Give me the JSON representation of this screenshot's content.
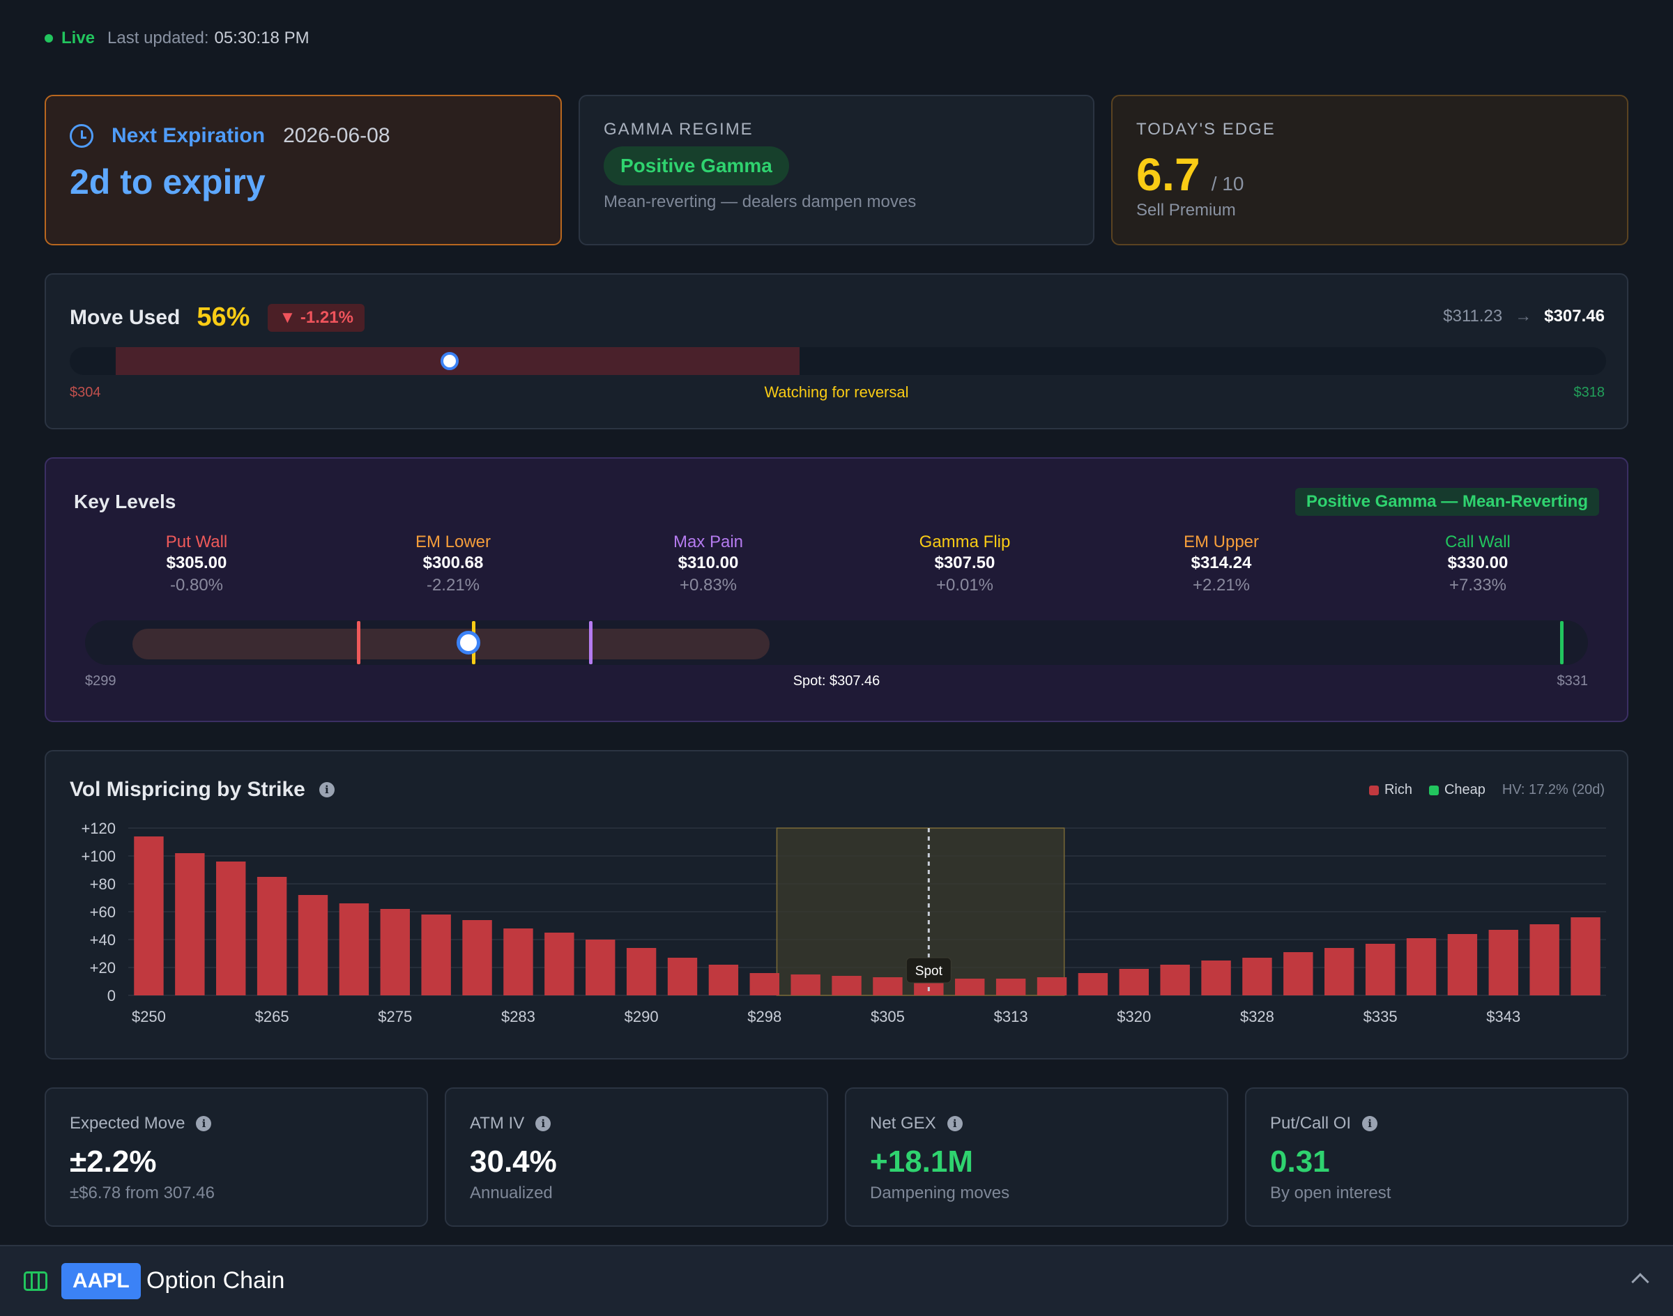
{
  "status": {
    "live": "Live",
    "updated_label": "Last updated:",
    "updated_time": "05:30:18 PM"
  },
  "expiration": {
    "label": "Next Expiration",
    "date": "2026-06-08",
    "countdown": "2d to expiry"
  },
  "gamma": {
    "title": "GAMMA REGIME",
    "regime": "Positive Gamma",
    "description": "Mean-reverting — dealers dampen moves"
  },
  "edge": {
    "title": "TODAY'S EDGE",
    "score": "6.7",
    "max": "/ 10",
    "action": "Sell Premium"
  },
  "move": {
    "label": "Move Used",
    "percent": "56%",
    "change": "▼ -1.21%",
    "from_price": "$311.23",
    "to_price": "$307.46",
    "range_low": "$304",
    "range_high": "$318",
    "note": "Watching for reversal",
    "range_low_value": 304,
    "range_high_value": 318,
    "spot_value": 307.46,
    "fill_start_value": 304.42,
    "fill_end_value": 310.65
  },
  "levels": {
    "title": "Key Levels",
    "tag": "Positive Gamma — Mean-Reverting",
    "items": [
      {
        "name": "Put Wall",
        "price": "$305.00",
        "pct": "-0.80%",
        "color": "#ef5a5a",
        "value": 305.0
      },
      {
        "name": "EM Lower",
        "price": "$300.68",
        "pct": "-2.21%",
        "color": "#f59e3b",
        "value": 300.68
      },
      {
        "name": "Max Pain",
        "price": "$310.00",
        "pct": "+0.83%",
        "color": "#b57bf0",
        "value": 310.0
      },
      {
        "name": "Gamma Flip",
        "price": "$307.50",
        "pct": "+0.01%",
        "color": "#facc15",
        "value": 307.5
      },
      {
        "name": "EM Upper",
        "price": "$314.24",
        "pct": "+2.21%",
        "color": "#f59e3b",
        "value": 314.24
      },
      {
        "name": "Call Wall",
        "price": "$330.00",
        "pct": "+7.33%",
        "color": "#22c55e",
        "value": 330.0
      }
    ],
    "axis_low": "$299",
    "axis_high": "$331",
    "spot_label": "Spot: $307.46",
    "axis_low_value": 299,
    "axis_high_value": 331,
    "spot_value": 307.46
  },
  "vol": {
    "title": "Vol Mispricing by Strike",
    "legend_rich": "Rich",
    "legend_cheap": "Cheap",
    "hv": "HV: 17.2% (20d)",
    "rich_color": "#c1393f",
    "cheap_color": "#22c55e",
    "spot_label": "Spot"
  },
  "chart_data": {
    "type": "bar",
    "title": "Vol Mispricing by Strike",
    "xlabel": "",
    "ylabel": "",
    "ylim": [
      0,
      120
    ],
    "yticks": [
      "+120",
      "+100",
      "+80",
      "+60",
      "+40",
      "+20",
      "0"
    ],
    "ytick_values": [
      120,
      100,
      80,
      60,
      40,
      20,
      0
    ],
    "xtick_labels": [
      "$250",
      "$265",
      "$275",
      "$283",
      "$290",
      "$298",
      "$305",
      "$313",
      "$320",
      "$328",
      "$335",
      "$343"
    ],
    "xtick_index": [
      0,
      3,
      6,
      9,
      12,
      15,
      18,
      21,
      24,
      27,
      30,
      33
    ],
    "values": [
      114,
      102,
      96,
      85,
      72,
      66,
      62,
      58,
      54,
      48,
      45,
      40,
      34,
      27,
      22,
      16,
      15,
      14,
      13,
      12,
      12,
      12,
      13,
      16,
      19,
      22,
      25,
      27,
      31,
      34,
      37,
      41,
      44,
      47,
      51,
      56
    ],
    "highlight_start_index": 16,
    "highlight_end_index": 22,
    "spot_index": 19,
    "grid": true,
    "legend_placement": "top-right"
  },
  "stats": [
    {
      "label": "Expected Move",
      "value": "±2.2%",
      "sub": "±$6.78 from 307.46",
      "color": "#ffffff"
    },
    {
      "label": "ATM IV",
      "value": "30.4%",
      "sub": "Annualized",
      "color": "#ffffff"
    },
    {
      "label": "Net GEX",
      "value": "+18.1M",
      "sub": "Dampening moves",
      "color": "#2fd36f"
    },
    {
      "label": "Put/Call OI",
      "value": "0.31",
      "sub": "By open interest",
      "color": "#2fd36f"
    }
  ],
  "bottom": {
    "ticker": "AAPL",
    "title": "Option Chain"
  }
}
